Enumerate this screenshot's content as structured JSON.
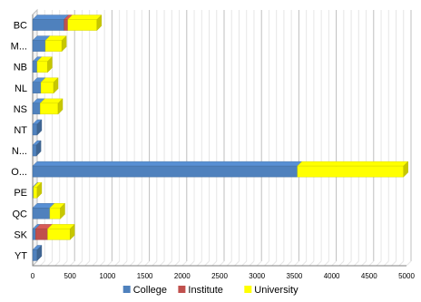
{
  "chart_data": {
    "type": "bar",
    "orientation": "horizontal",
    "stacked": true,
    "style": "3d",
    "categories": [
      "BC",
      "M...",
      "NB",
      "NL",
      "NS",
      "NT",
      "N...",
      "O...",
      "PE",
      "QC",
      "SK",
      "YT"
    ],
    "series": [
      {
        "name": "College",
        "color": "#4f81bd",
        "values": [
          420,
          170,
          60,
          110,
          100,
          60,
          50,
          3540,
          10,
          230,
          40,
          60
        ]
      },
      {
        "name": "Institute",
        "color": "#c0504d",
        "values": [
          50,
          0,
          0,
          0,
          0,
          0,
          0,
          0,
          0,
          0,
          160,
          0
        ]
      },
      {
        "name": "University",
        "color": "#ffff00",
        "values": [
          390,
          220,
          140,
          170,
          240,
          0,
          0,
          1420,
          50,
          140,
          300,
          0
        ]
      }
    ],
    "x_ticks": [
      0,
      500,
      1000,
      1500,
      2000,
      2500,
      3000,
      3500,
      4000,
      4500,
      5000
    ],
    "xlim": [
      0,
      5000
    ],
    "grid": true,
    "legend_position": "bottom"
  }
}
